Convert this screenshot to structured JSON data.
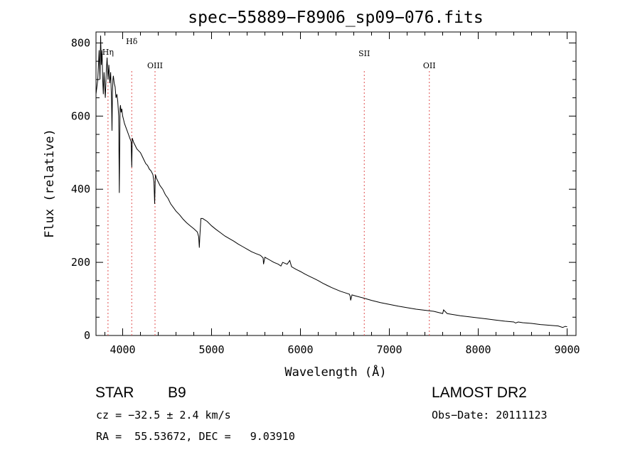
{
  "chart_data": {
    "type": "line",
    "title": "spec−55889−F8906_sp09−076.fits",
    "xlabel": "Wavelength (Å)",
    "ylabel": "Flux (relative)",
    "xlim": [
      3700,
      9100
    ],
    "ylim": [
      0,
      830
    ],
    "xticks": [
      4000,
      5000,
      6000,
      7000,
      8000,
      9000
    ],
    "yticks": [
      0,
      200,
      400,
      600,
      800
    ],
    "grid": false,
    "series": [
      {
        "x": [
          3700,
          3720,
          3735,
          3745,
          3752,
          3760,
          3768,
          3775,
          3782,
          3790,
          3798,
          3805,
          3815,
          3825,
          3835,
          3845,
          3855,
          3865,
          3875,
          3880,
          3885,
          3890,
          3895,
          3905,
          3915,
          3925,
          3935,
          3945,
          3955,
          3962,
          3970,
          3975,
          3982,
          3990,
          4000,
          4010,
          4020,
          4035,
          4050,
          4065,
          4080,
          4095,
          4102,
          4108,
          4120,
          4140,
          4160,
          4180,
          4200,
          4220,
          4240,
          4260,
          4280,
          4300,
          4320,
          4340,
          4352,
          4360,
          4368,
          4380,
          4400,
          4420,
          4450,
          4480,
          4510,
          4540,
          4570,
          4600,
          4640,
          4680,
          4720,
          4760,
          4800,
          4840,
          4855,
          4862,
          4868,
          4880,
          4900,
          4950,
          5000,
          5050,
          5100,
          5150,
          5200,
          5250,
          5300,
          5350,
          5400,
          5450,
          5500,
          5550,
          5580,
          5585,
          5600,
          5650,
          5700,
          5750,
          5780,
          5800,
          5850,
          5880,
          5900,
          5950,
          6000,
          6050,
          6100,
          6150,
          6200,
          6250,
          6300,
          6350,
          6400,
          6450,
          6500,
          6550,
          6560,
          6565,
          6580,
          6620,
          6700,
          6800,
          6900,
          7000,
          7100,
          7200,
          7300,
          7400,
          7500,
          7600,
          7610,
          7650,
          7700,
          7800,
          7900,
          8000,
          8100,
          8200,
          8300,
          8400,
          8420,
          8450,
          8500,
          8600,
          8700,
          8800,
          8900,
          8950,
          8980,
          9000
        ],
        "values": [
          660,
          700,
          780,
          700,
          820,
          740,
          780,
          700,
          660,
          720,
          680,
          650,
          720,
          760,
          700,
          740,
          690,
          720,
          640,
          560,
          660,
          700,
          710,
          690,
          680,
          650,
          660,
          640,
          600,
          390,
          620,
          630,
          610,
          620,
          600,
          590,
          580,
          570,
          560,
          550,
          540,
          530,
          460,
          540,
          530,
          520,
          510,
          505,
          500,
          490,
          480,
          470,
          465,
          455,
          450,
          440,
          420,
          360,
          440,
          430,
          420,
          410,
          400,
          385,
          375,
          360,
          350,
          340,
          330,
          318,
          308,
          300,
          292,
          283,
          270,
          240,
          270,
          320,
          320,
          312,
          300,
          290,
          281,
          272,
          265,
          258,
          250,
          243,
          236,
          229,
          224,
          219,
          212,
          195,
          214,
          207,
          200,
          195,
          190,
          200,
          195,
          205,
          188,
          181,
          175,
          168,
          162,
          156,
          150,
          143,
          137,
          131,
          126,
          121,
          117,
          113,
          107,
          96,
          111,
          108,
          103,
          96,
          90,
          85,
          80,
          76,
          72,
          69,
          66,
          60,
          70,
          60,
          58,
          54,
          51,
          48,
          45,
          42,
          39,
          37,
          34,
          37,
          35,
          33,
          30,
          28,
          26,
          22,
          25,
          24
        ]
      }
    ],
    "annotations": [
      {
        "label": "Hη",
        "x": 3835
      },
      {
        "label": "Hδ",
        "x": 4102
      },
      {
        "label": "OIII",
        "x": 4364
      },
      {
        "label": "SII",
        "x": 6718
      },
      {
        "label": "OII",
        "x": 7450
      }
    ]
  },
  "info": {
    "obj_class": "STAR",
    "subclass": "B9",
    "survey": "LAMOST DR2",
    "redshift": "cz = −32.5 ± 2.4 km/s",
    "obsdate": "Obs−Date: 20111123",
    "coords": "RA =  55.53672, DEC =   9.03910"
  },
  "colors": {
    "spectrum": "#000000",
    "line_markers": "#e05050",
    "axes": "#000000"
  }
}
